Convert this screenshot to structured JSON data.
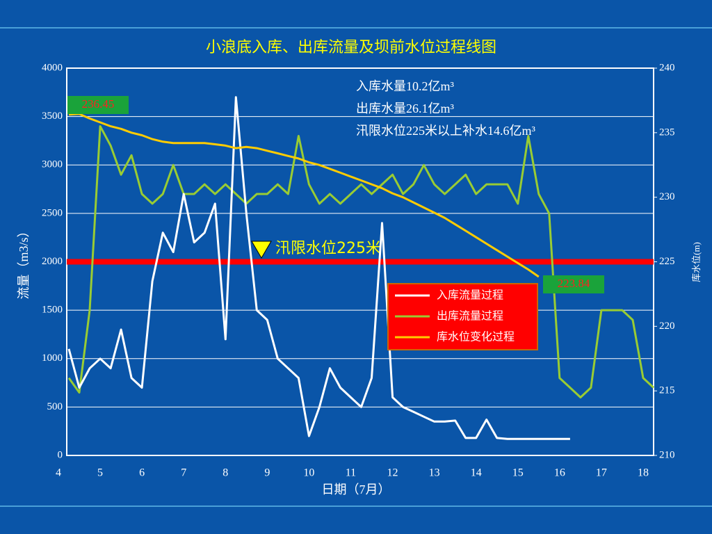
{
  "chart_data": {
    "type": "line",
    "title": "小浪底入库、出库流量及坝前水位过程线图",
    "xlabel": "日期（7月）",
    "ylabel": "流量（m3/s）",
    "y2label": "库水位(m)",
    "notes": [
      "入库水量10.2亿m³",
      "出库水量26.1亿m³",
      "汛限水位225米以上补水14.6亿m³"
    ],
    "annotations": [
      "236.45",
      "223.84"
    ],
    "reference_line": {
      "value": 2000,
      "label": "汛限水位225米",
      "color": "#ff0000"
    },
    "legend_position": "center-right",
    "grid": true,
    "xlim": [
      4.2,
      18.25
    ],
    "xticks": [
      4,
      5,
      6,
      7,
      8,
      9,
      10,
      11,
      12,
      13,
      14,
      15,
      16,
      17,
      18
    ],
    "ylim": [
      0,
      4000
    ],
    "yticks": [
      0,
      500,
      1000,
      1500,
      2000,
      2500,
      3000,
      3500,
      4000
    ],
    "y2lim": [
      210,
      240
    ],
    "y2ticks": [
      210,
      215,
      220,
      225,
      230,
      235,
      240
    ],
    "x": [
      4.25,
      4.5,
      4.75,
      5,
      5.25,
      5.5,
      5.75,
      6,
      6.25,
      6.5,
      6.75,
      7,
      7.25,
      7.5,
      7.75,
      8,
      8.25,
      8.5,
      8.75,
      9,
      9.25,
      9.5,
      9.75,
      10,
      10.25,
      10.5,
      10.75,
      11,
      11.25,
      11.5,
      11.75,
      12,
      12.25,
      12.5,
      12.75,
      13,
      13.25,
      13.5,
      13.75,
      14,
      14.25,
      14.5,
      14.75,
      15,
      15.25,
      15.5,
      15.75,
      16,
      16.25,
      16.5,
      16.75,
      17,
      17.25,
      17.5,
      17.75,
      18,
      18.25
    ],
    "series": [
      {
        "name": "入库流量过程",
        "color": "#ffffff",
        "values": [
          1100,
          700,
          900,
          1000,
          900,
          1300,
          800,
          700,
          1800,
          2300,
          2100,
          2700,
          2200,
          2300,
          2600,
          1200,
          3700,
          2500,
          1500,
          1400,
          1000,
          900,
          800,
          200,
          500,
          900,
          700,
          600,
          500,
          800,
          2400,
          600,
          500,
          450,
          400,
          350,
          350,
          360,
          180,
          180,
          370,
          180,
          170,
          170,
          170,
          170,
          170,
          170,
          170,
          null,
          null,
          null,
          null,
          null,
          null,
          null,
          null
        ]
      },
      {
        "name": "出库流量过程",
        "color": "#99cc33",
        "values": [
          800,
          650,
          1500,
          3400,
          3200,
          2900,
          3100,
          2700,
          2600,
          2700,
          3000,
          2700,
          2700,
          2800,
          2700,
          2800,
          2700,
          2600,
          2700,
          2700,
          2800,
          2700,
          3300,
          2800,
          2600,
          2700,
          2600,
          2700,
          2800,
          2700,
          2800,
          2900,
          2700,
          2800,
          3000,
          2800,
          2700,
          2800,
          2900,
          2700,
          2800,
          2800,
          2800,
          2600,
          3300,
          2700,
          2500,
          800,
          700,
          600,
          700,
          1500,
          1500,
          1500,
          1400,
          800,
          700
        ]
      },
      {
        "name": "库水位变化过程",
        "color": "#ffcc00",
        "axis": "y2",
        "values": [
          236.4,
          236.45,
          236.1,
          235.8,
          235.5,
          235.3,
          235.0,
          234.8,
          234.5,
          234.3,
          234.2,
          234.2,
          234.2,
          234.2,
          234.1,
          234.0,
          233.8,
          233.9,
          233.8,
          233.6,
          233.4,
          233.2,
          233.0,
          232.7,
          232.5,
          232.2,
          231.9,
          231.6,
          231.3,
          231.0,
          230.7,
          230.3,
          230.0,
          229.6,
          229.2,
          228.8,
          228.4,
          227.9,
          227.4,
          226.9,
          226.4,
          225.9,
          225.4,
          224.9,
          224.4,
          223.84,
          null,
          null,
          null,
          null,
          null,
          null,
          null,
          null,
          null,
          null,
          null
        ]
      }
    ]
  }
}
